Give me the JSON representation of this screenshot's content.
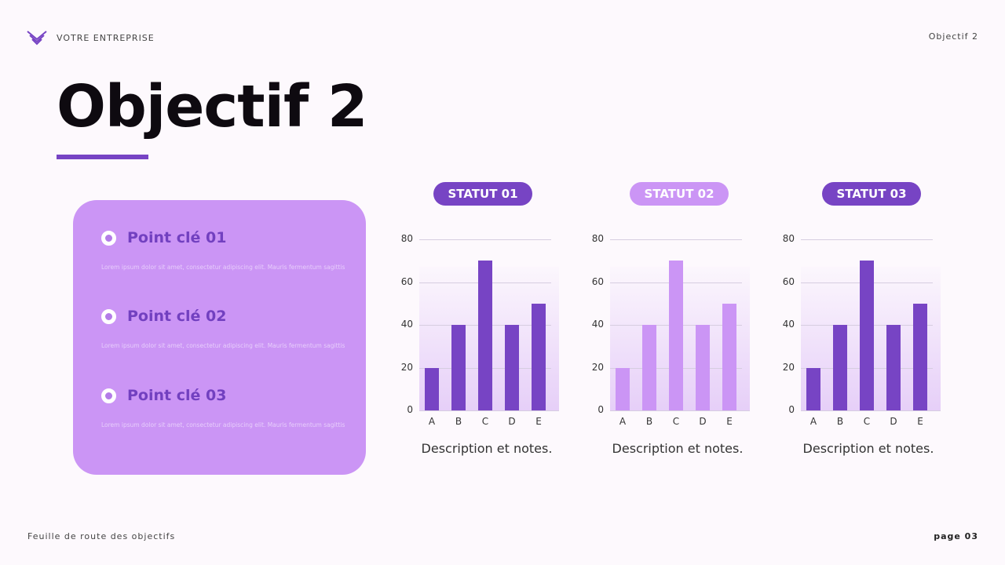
{
  "header": {
    "brand": "VOTRE ENTREPRISE",
    "brand_icon": "chevron-stack-icon",
    "section": "Objectif 2"
  },
  "title": "Objectif 2",
  "keypoints": [
    {
      "title": "Point clé 01",
      "text": "Lorem ipsum dolor sit amet, consectetur adipiscing elit. Mauris fermentum sagittis"
    },
    {
      "title": "Point clé 02",
      "text": "Lorem ipsum dolor sit amet, consectetur adipiscing elit. Mauris fermentum sagittis"
    },
    {
      "title": "Point clé 03",
      "text": "Lorem ipsum dolor sit amet, consectetur adipiscing elit. Mauris fermentum sagittis"
    }
  ],
  "colors": {
    "accent": "#7744c4",
    "accent_light": "#cb95f5",
    "panel": "#cb95f5",
    "background": "#fdf9fd"
  },
  "charts": [
    {
      "badge": "STATUT 01",
      "badge_color": "#7744c4",
      "bar_color": "#7744c4",
      "description": "Description et notes."
    },
    {
      "badge": "STATUT 02",
      "badge_color": "#cb95f5",
      "bar_color": "#cb95f5",
      "description": "Description et notes."
    },
    {
      "badge": "STATUT 03",
      "badge_color": "#7744c4",
      "bar_color": "#7744c4",
      "description": "Description et notes."
    }
  ],
  "chart_data": [
    {
      "type": "bar",
      "title": "STATUT 01",
      "categories": [
        "A",
        "B",
        "C",
        "D",
        "E"
      ],
      "values": [
        20,
        40,
        70,
        40,
        50
      ],
      "xlabel": "",
      "ylabel": "",
      "ylim": [
        0,
        80
      ],
      "yticks": [
        0,
        20,
        40,
        60,
        80
      ],
      "grid": true,
      "caption": "Description et notes."
    },
    {
      "type": "bar",
      "title": "STATUT 02",
      "categories": [
        "A",
        "B",
        "C",
        "D",
        "E"
      ],
      "values": [
        20,
        40,
        70,
        40,
        50
      ],
      "xlabel": "",
      "ylabel": "",
      "ylim": [
        0,
        80
      ],
      "yticks": [
        0,
        20,
        40,
        60,
        80
      ],
      "grid": true,
      "caption": "Description et notes."
    },
    {
      "type": "bar",
      "title": "STATUT 03",
      "categories": [
        "A",
        "B",
        "C",
        "D",
        "E"
      ],
      "values": [
        20,
        40,
        70,
        40,
        50
      ],
      "xlabel": "",
      "ylabel": "",
      "ylim": [
        0,
        80
      ],
      "yticks": [
        0,
        20,
        40,
        60,
        80
      ],
      "grid": true,
      "caption": "Description et notes."
    }
  ],
  "footer": {
    "left": "Feuille de route des objectifs",
    "right": "page 03"
  }
}
